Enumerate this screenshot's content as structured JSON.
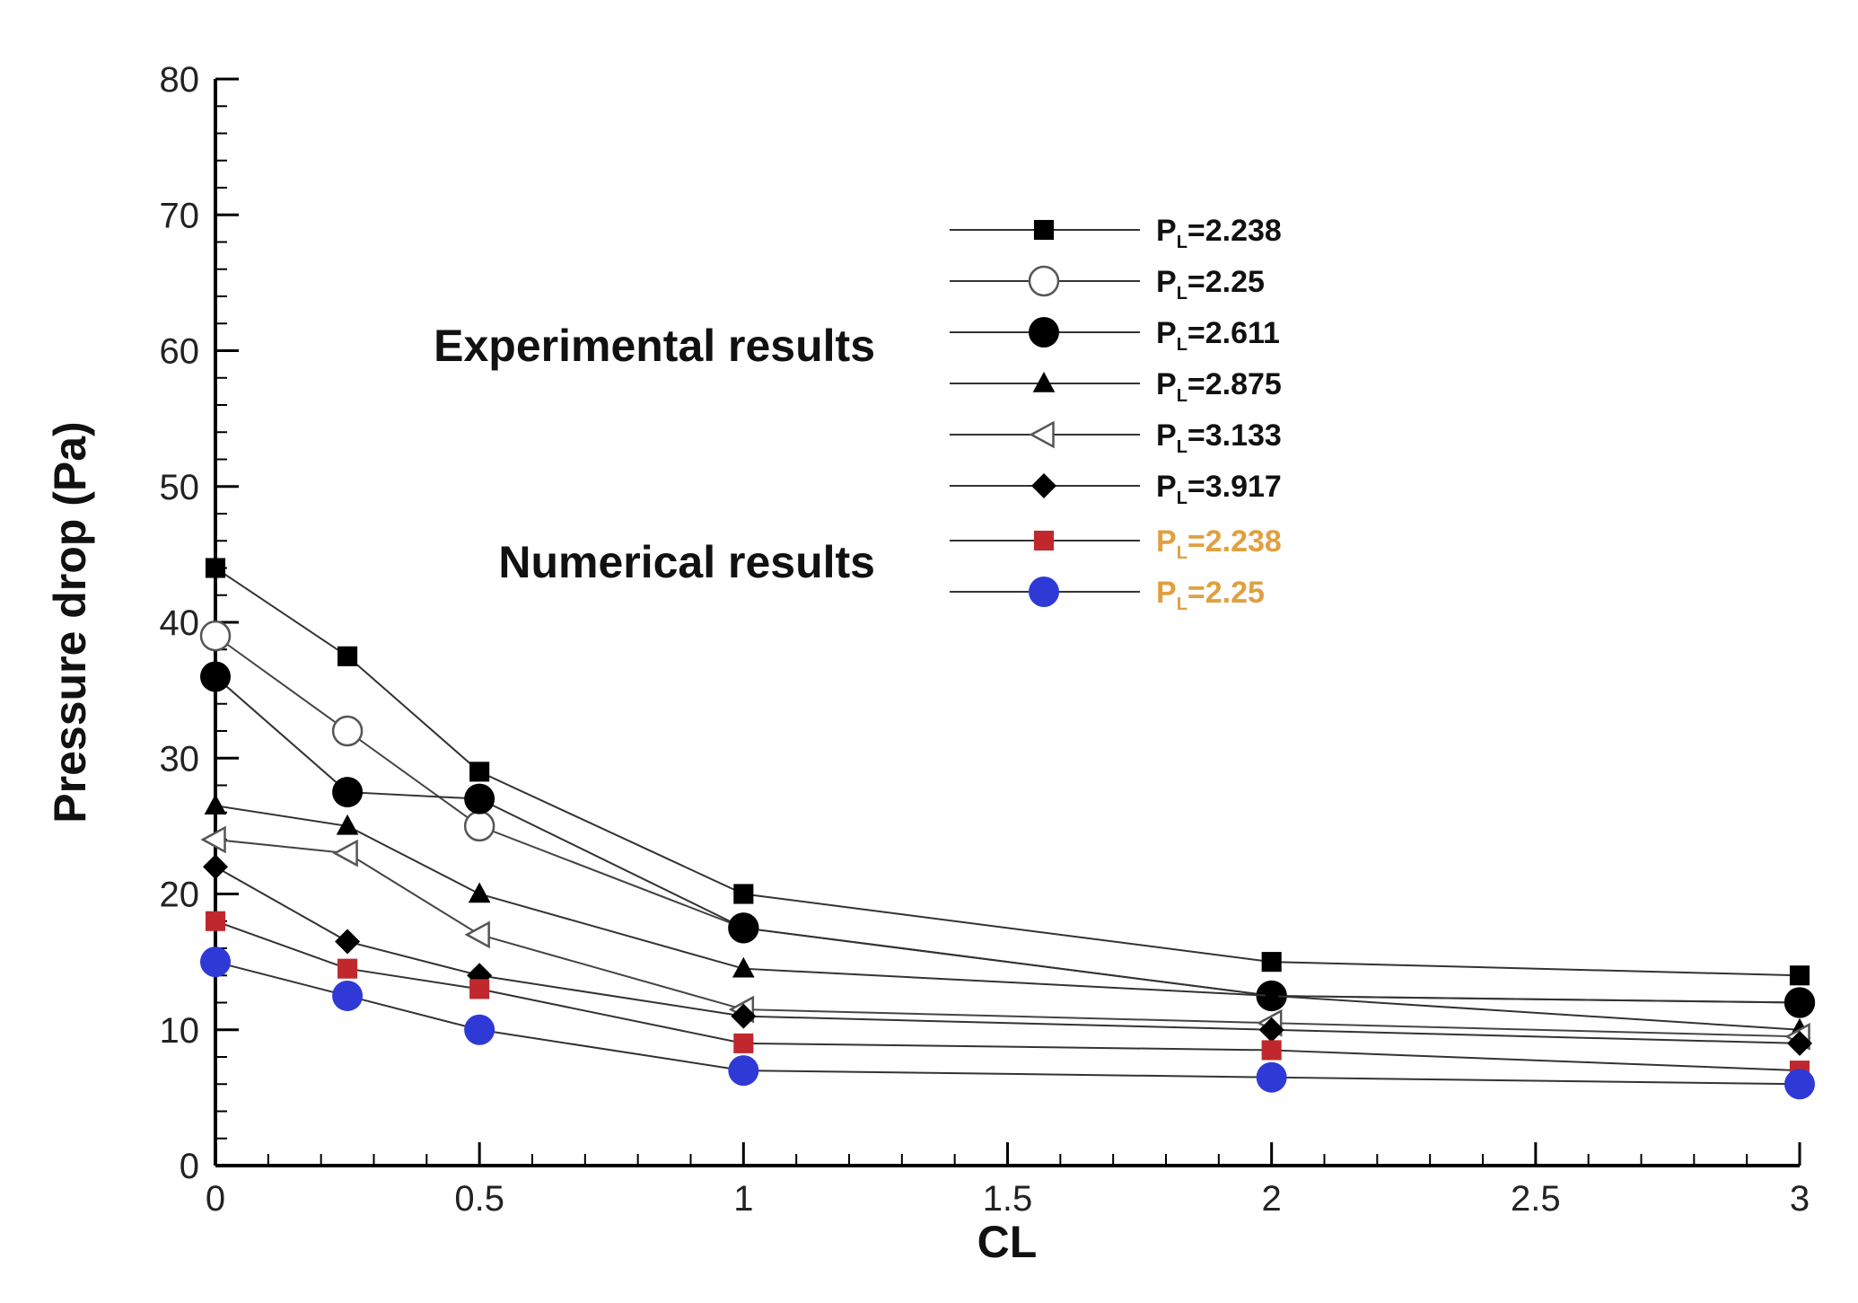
{
  "chart_data": {
    "type": "line",
    "xlabel": "CL",
    "ylabel": "Pressure drop (Pa)",
    "xlim": [
      0,
      3
    ],
    "ylim": [
      0,
      80
    ],
    "x_ticks": [
      "0",
      "0.5",
      "1",
      "1.5",
      "2",
      "2.5",
      "3"
    ],
    "y_ticks": [
      "0",
      "10",
      "20",
      "30",
      "40",
      "50",
      "60",
      "70",
      "80"
    ],
    "grid": false,
    "legend_position": "top-right",
    "annotations": [
      "Experimental results",
      "Numerical results"
    ],
    "x": [
      0,
      0.25,
      0.5,
      1,
      2,
      3
    ],
    "series": [
      {
        "label_base": "P",
        "label_sub": "L",
        "label_value": "=2.238",
        "marker": "square-filled",
        "color": "#000000",
        "label_color": "#111111",
        "values": [
          44,
          37.5,
          29,
          20,
          15,
          14
        ]
      },
      {
        "label_base": "P",
        "label_sub": "L",
        "label_value": "=2.25",
        "marker": "circle-open",
        "color": "#555555",
        "label_color": "#111111",
        "values": [
          39,
          32,
          25,
          17.5,
          12.5,
          12
        ]
      },
      {
        "label_base": "P",
        "label_sub": "L",
        "label_value": "=2.611",
        "marker": "circle-filled",
        "color": "#000000",
        "label_color": "#111111",
        "values": [
          36,
          27.5,
          27,
          17.5,
          12.5,
          12
        ]
      },
      {
        "label_base": "P",
        "label_sub": "L",
        "label_value": "=2.875",
        "marker": "triangle-filled",
        "color": "#000000",
        "label_color": "#111111",
        "values": [
          26.5,
          25,
          20,
          14.5,
          12.5,
          10
        ]
      },
      {
        "label_base": "P",
        "label_sub": "L",
        "label_value": "=3.133",
        "marker": "triangle-left-open",
        "color": "#555555",
        "label_color": "#111111",
        "values": [
          24,
          23,
          17,
          11.5,
          10.5,
          9.5
        ]
      },
      {
        "label_base": "P",
        "label_sub": "L",
        "label_value": "=3.917",
        "marker": "diamond-filled",
        "color": "#000000",
        "label_color": "#111111",
        "values": [
          22,
          16.5,
          14,
          11,
          10,
          9
        ]
      },
      {
        "label_base": "P",
        "label_sub": "L",
        "label_value": "=2.238",
        "marker": "square-filled",
        "color": "#c0282d",
        "label_color": "#e0a040",
        "values": [
          18,
          14.5,
          13,
          9,
          8.5,
          7
        ]
      },
      {
        "label_base": "P",
        "label_sub": "L",
        "label_value": "=2.25",
        "marker": "circle-filled",
        "color": "#2f3ad6",
        "label_color": "#e0a040",
        "values": [
          15,
          12.5,
          10,
          7,
          6.5,
          6
        ]
      }
    ]
  }
}
